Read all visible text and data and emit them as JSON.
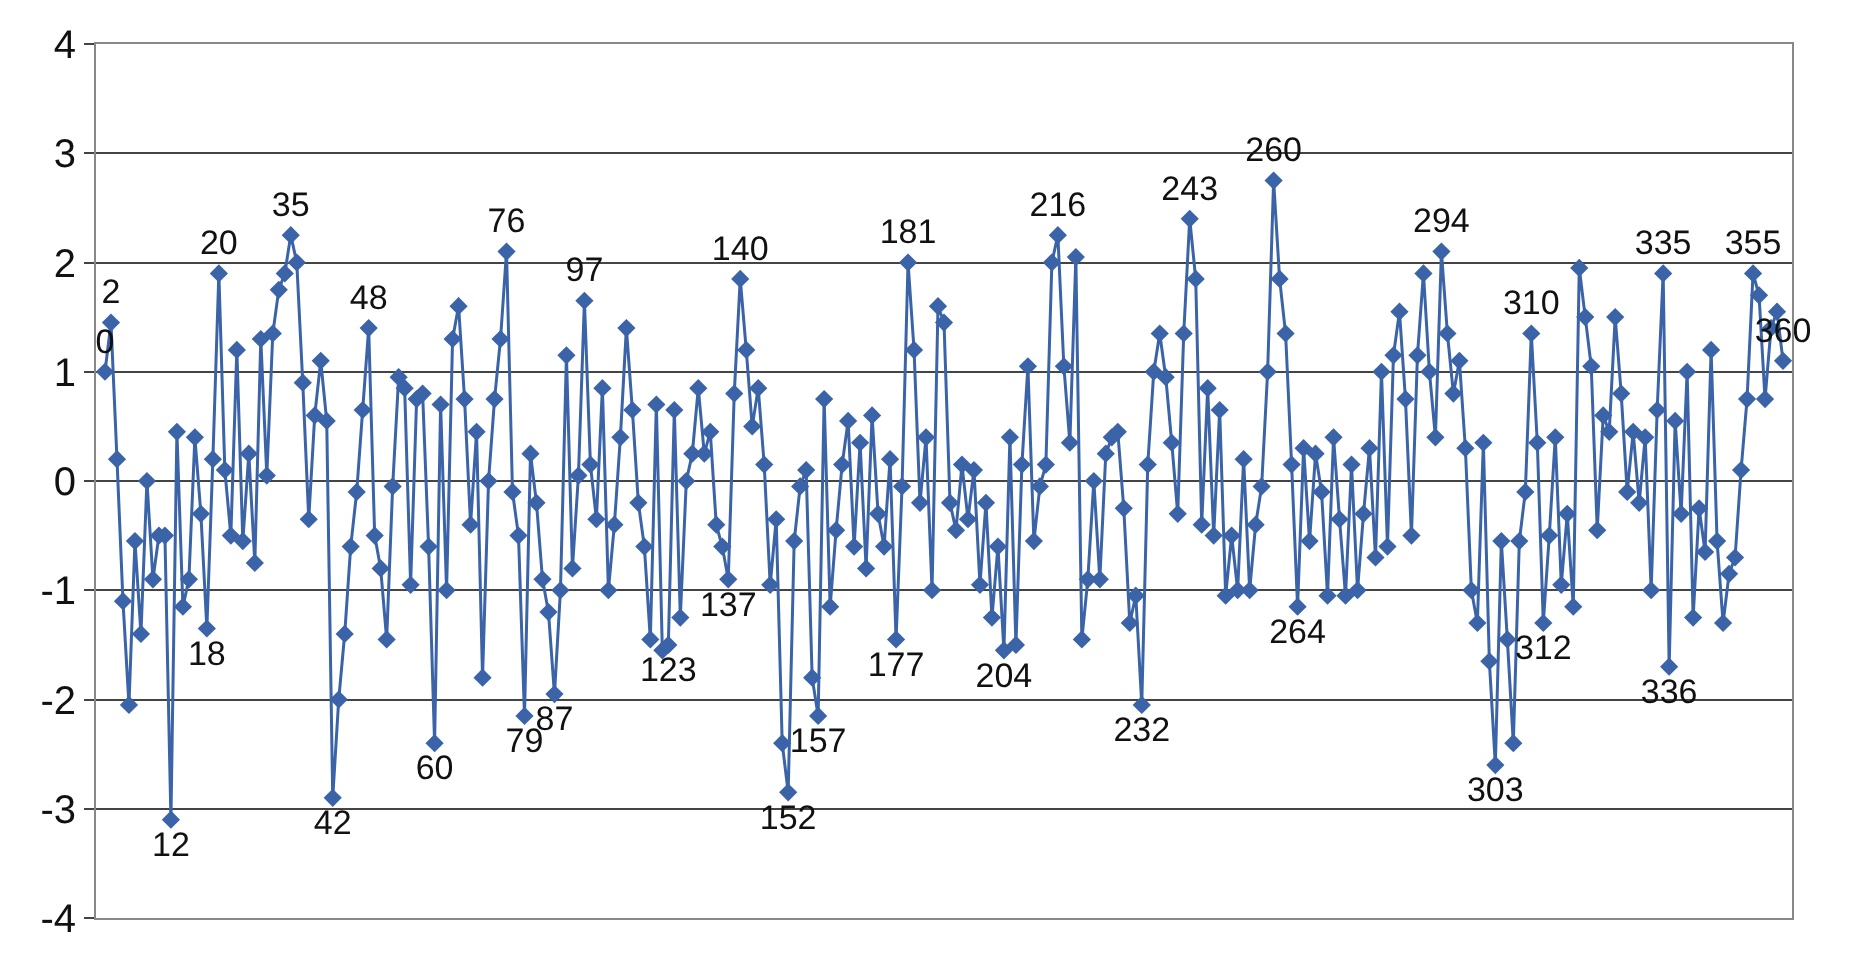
{
  "chart_data": {
    "type": "line",
    "marker": "diamond",
    "grid": "y",
    "tick_labels": "y",
    "ylim": [
      -4,
      4
    ],
    "yticks": [
      -4,
      -3,
      -2,
      -1,
      0,
      1,
      2,
      3,
      4
    ],
    "categories": [
      "0",
      "2",
      null,
      null,
      null,
      null,
      null,
      null,
      null,
      null,
      null,
      "12",
      null,
      null,
      null,
      null,
      null,
      "18",
      null,
      "20",
      null,
      null,
      null,
      null,
      null,
      null,
      null,
      null,
      null,
      null,
      null,
      "35",
      null,
      null,
      null,
      null,
      null,
      null,
      "42",
      null,
      null,
      null,
      null,
      null,
      "48",
      null,
      null,
      null,
      null,
      null,
      null,
      null,
      null,
      null,
      null,
      "60",
      null,
      null,
      null,
      null,
      null,
      null,
      null,
      null,
      null,
      null,
      null,
      "76",
      null,
      null,
      "79",
      null,
      null,
      null,
      null,
      "87",
      null,
      null,
      null,
      null,
      "97",
      null,
      null,
      null,
      null,
      null,
      null,
      null,
      null,
      null,
      null,
      null,
      null,
      null,
      "123",
      null,
      null,
      null,
      null,
      null,
      null,
      null,
      null,
      null,
      "137",
      null,
      "140",
      null,
      null,
      null,
      null,
      null,
      null,
      null,
      "152",
      null,
      null,
      null,
      null,
      "157",
      null,
      null,
      null,
      null,
      null,
      null,
      null,
      null,
      null,
      null,
      null,
      null,
      "177",
      null,
      "181",
      null,
      null,
      null,
      null,
      null,
      null,
      null,
      null,
      null,
      null,
      null,
      null,
      null,
      null,
      null,
      "204",
      null,
      null,
      null,
      null,
      null,
      null,
      null,
      null,
      "216",
      null,
      null,
      null,
      null,
      null,
      null,
      null,
      null,
      null,
      null,
      null,
      null,
      null,
      "232",
      null,
      null,
      null,
      null,
      null,
      null,
      null,
      "243",
      null,
      null,
      null,
      null,
      null,
      null,
      null,
      null,
      null,
      null,
      null,
      null,
      null,
      "260",
      null,
      null,
      null,
      "264",
      null,
      null,
      null,
      null,
      null,
      null,
      null,
      null,
      null,
      null,
      null,
      null,
      null,
      null,
      null,
      null,
      null,
      null,
      null,
      null,
      null,
      null,
      null,
      "294",
      null,
      null,
      null,
      null,
      null,
      null,
      null,
      null,
      "303",
      null,
      null,
      null,
      null,
      null,
      "310",
      null,
      "312",
      null,
      null,
      null,
      null,
      null,
      null,
      null,
      null,
      null,
      null,
      null,
      null,
      null,
      null,
      null,
      null,
      null,
      null,
      null,
      "335",
      "336",
      null,
      null,
      null,
      null,
      null,
      null,
      null,
      null,
      null,
      null,
      null,
      null,
      null,
      "355",
      null,
      null,
      null,
      null,
      "360"
    ],
    "series": [
      {
        "color": "#3a63a8",
        "values": [
          1.0,
          1.45,
          0.2,
          -1.1,
          -2.05,
          -0.55,
          -1.4,
          0.0,
          -0.9,
          -0.5,
          -0.5,
          -3.1,
          0.45,
          -1.15,
          -0.9,
          0.4,
          -0.3,
          -1.35,
          0.2,
          1.9,
          0.1,
          -0.5,
          1.2,
          -0.55,
          0.25,
          -0.75,
          1.3,
          0.05,
          1.35,
          1.75,
          1.9,
          2.25,
          2.0,
          0.9,
          -0.35,
          0.6,
          1.1,
          0.55,
          -2.9,
          -2.0,
          -1.4,
          -0.6,
          -0.1,
          0.65,
          1.4,
          -0.5,
          -0.8,
          -1.45,
          -0.05,
          0.95,
          0.85,
          -0.95,
          0.75,
          0.8,
          -0.6,
          -2.4,
          0.7,
          -1.0,
          1.3,
          1.6,
          0.75,
          -0.4,
          0.45,
          -1.8,
          0.0,
          0.75,
          1.3,
          2.1,
          -0.1,
          -0.5,
          -2.15,
          0.25,
          -0.2,
          -0.9,
          -1.2,
          -1.95,
          -1.0,
          1.15,
          -0.8,
          0.05,
          1.65,
          0.15,
          -0.35,
          0.85,
          -1.0,
          -0.4,
          0.4,
          1.4,
          0.65,
          -0.2,
          -0.6,
          -1.45,
          0.7,
          -1.55,
          -1.5,
          0.65,
          -1.25,
          0.0,
          0.25,
          0.85,
          0.25,
          0.45,
          -0.4,
          -0.6,
          -0.9,
          0.8,
          1.85,
          1.2,
          0.5,
          0.85,
          0.15,
          -0.95,
          -0.35,
          -2.4,
          -2.85,
          -0.55,
          -0.05,
          0.1,
          -1.8,
          -2.15,
          0.75,
          -1.15,
          -0.45,
          0.15,
          0.55,
          -0.6,
          0.35,
          -0.8,
          0.6,
          -0.3,
          -0.6,
          0.2,
          -1.45,
          -0.05,
          2.0,
          1.2,
          -0.2,
          0.4,
          -1.0,
          1.6,
          1.45,
          -0.2,
          -0.45,
          0.15,
          -0.35,
          0.1,
          -0.95,
          -0.2,
          -1.25,
          -0.6,
          -1.55,
          0.4,
          -1.5,
          0.15,
          1.05,
          -0.55,
          -0.05,
          0.15,
          2.0,
          2.25,
          1.05,
          0.35,
          2.05,
          -1.45,
          -0.9,
          0.0,
          -0.9,
          0.25,
          0.4,
          0.45,
          -0.25,
          -1.3,
          -1.05,
          -2.05,
          0.15,
          1.0,
          1.35,
          0.95,
          0.35,
          -0.3,
          1.35,
          2.4,
          1.85,
          -0.4,
          0.85,
          -0.5,
          0.65,
          -1.05,
          -0.5,
          -1.0,
          0.2,
          -1.0,
          -0.4,
          -0.05,
          1.0,
          2.75,
          1.85,
          1.35,
          0.15,
          -1.15,
          0.3,
          -0.55,
          0.25,
          -0.1,
          -1.05,
          0.4,
          -0.35,
          -1.05,
          0.15,
          -1.0,
          -0.3,
          0.3,
          -0.7,
          1.0,
          -0.6,
          1.15,
          1.55,
          0.75,
          -0.5,
          1.15,
          1.9,
          1.0,
          0.4,
          2.1,
          1.35,
          0.8,
          1.1,
          0.3,
          -1.0,
          -1.3,
          0.35,
          -1.65,
          -2.6,
          -0.55,
          -1.45,
          -2.4,
          -0.55,
          -0.1,
          1.35,
          0.35,
          -1.3,
          -0.5,
          0.4,
          -0.95,
          -0.3,
          -1.15,
          1.95,
          1.5,
          1.05,
          -0.45,
          0.6,
          0.45,
          1.5,
          0.8,
          -0.1,
          0.45,
          -0.2,
          0.4,
          -1.0,
          0.65,
          1.9,
          -1.7,
          0.55,
          -0.3,
          1.0,
          -1.25,
          -0.25,
          -0.65,
          1.2,
          -0.55,
          -1.3,
          -0.85,
          -0.7,
          0.1,
          0.75,
          1.9,
          1.7,
          0.75,
          1.4,
          1.55,
          1.1
        ]
      }
    ]
  }
}
